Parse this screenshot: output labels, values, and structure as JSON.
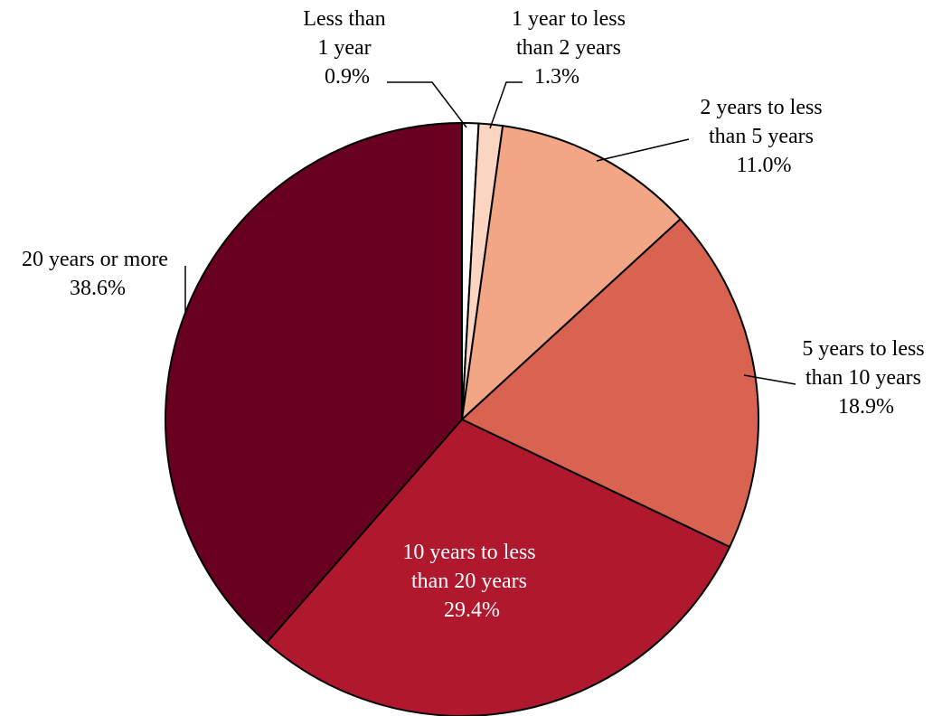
{
  "chart_data": {
    "type": "pie",
    "title": "",
    "slices": [
      {
        "label": [
          "Less than",
          "1 year"
        ],
        "value": 0.9,
        "value_label": "0.9%",
        "color": "#ffffff"
      },
      {
        "label": [
          "1 year to less",
          "than 2 years"
        ],
        "value": 1.3,
        "value_label": "1.3%",
        "color": "#fbd5c2"
      },
      {
        "label": [
          "2 years to less",
          "than 5 years"
        ],
        "value": 11.0,
        "value_label": "11.0%",
        "color": "#f3a685"
      },
      {
        "label": [
          "5 years to less",
          "than 10 years"
        ],
        "value": 18.9,
        "value_label": "18.9%",
        "color": "#d76350"
      },
      {
        "label": [
          "10 years to less",
          "than 20 years"
        ],
        "value": 29.4,
        "value_label": "29.4%",
        "color": "#b0182d",
        "label_color": "#ffffff"
      },
      {
        "label": [
          "20 years or more"
        ],
        "value": 38.6,
        "value_label": "38.6%",
        "color": "#680020"
      }
    ],
    "start_angle_deg": 0,
    "direction": "clockwise",
    "legend": "none"
  }
}
